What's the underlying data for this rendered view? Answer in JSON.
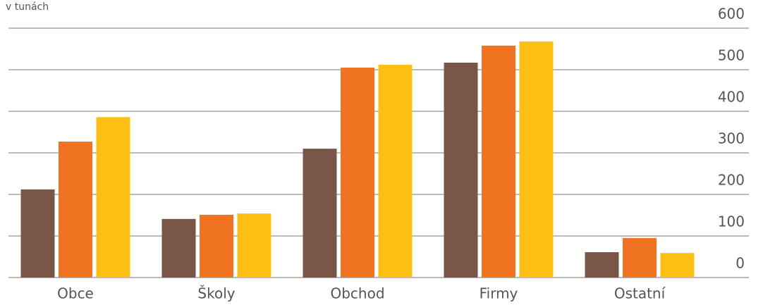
{
  "chart_data": {
    "type": "bar",
    "y_label": "v tunách",
    "categories": [
      "Obce",
      "Školy",
      "Obchod",
      "Firmy",
      "Ostatní"
    ],
    "series": [
      {
        "color": "#7a5648",
        "values": [
          212,
          141,
          310,
          517,
          61
        ]
      },
      {
        "color": "#f07322",
        "values": [
          327,
          151,
          505,
          558,
          95
        ]
      },
      {
        "color": "#fcc014",
        "values": [
          386,
          154,
          512,
          568,
          59
        ]
      }
    ],
    "ylim": [
      0,
      600
    ],
    "yticks": [
      0,
      100,
      200,
      300,
      400,
      500,
      600
    ],
    "grid": true,
    "y_axis_side": "right"
  }
}
